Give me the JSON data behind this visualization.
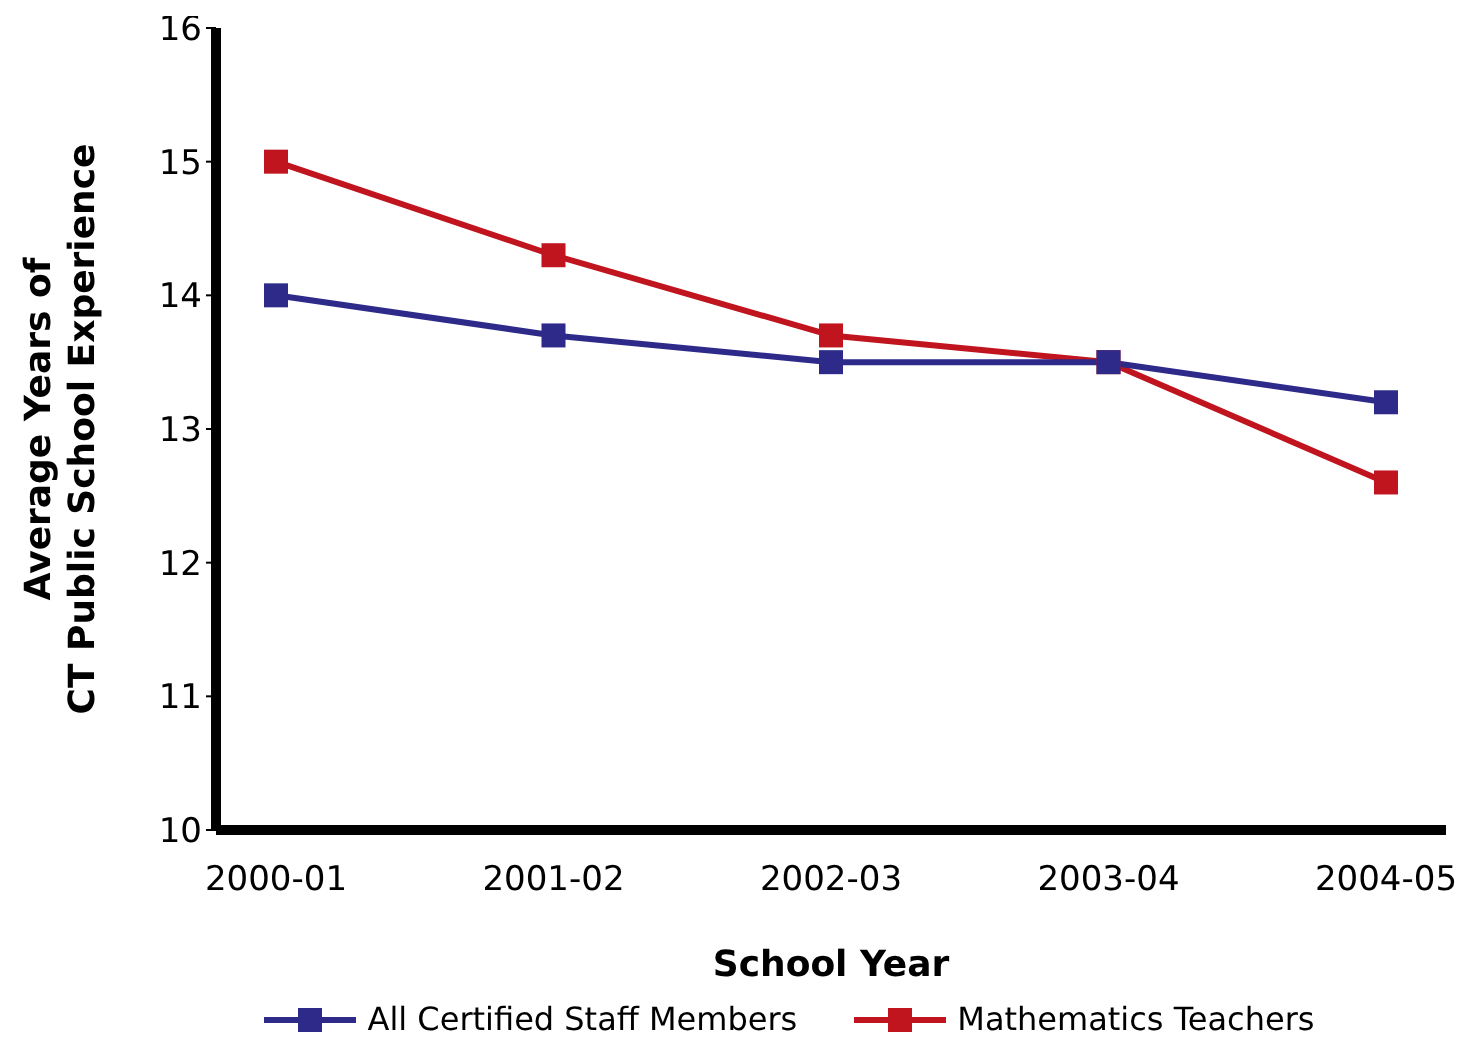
{
  "chart_data": {
    "type": "line",
    "xlabel": "School Year",
    "ylabel": "Average Years of\nCT Public School Experience",
    "categories": [
      "2000-01",
      "2001-02",
      "2002-03",
      "2003-04",
      "2004-05"
    ],
    "series": [
      {
        "name": "All Certified Staff Members",
        "color": "#2e2a8a",
        "values": [
          14.0,
          13.7,
          13.5,
          13.5,
          13.2
        ]
      },
      {
        "name": "Mathematics Teachers",
        "color": "#c0141e",
        "values": [
          15.0,
          14.3,
          13.7,
          13.5,
          12.6
        ]
      }
    ],
    "ylim": [
      10,
      16
    ],
    "yticks": [
      10,
      11,
      12,
      13,
      14,
      15,
      16
    ],
    "grid": false,
    "legend": "bottom",
    "marker": "square",
    "line_style": "solid"
  }
}
